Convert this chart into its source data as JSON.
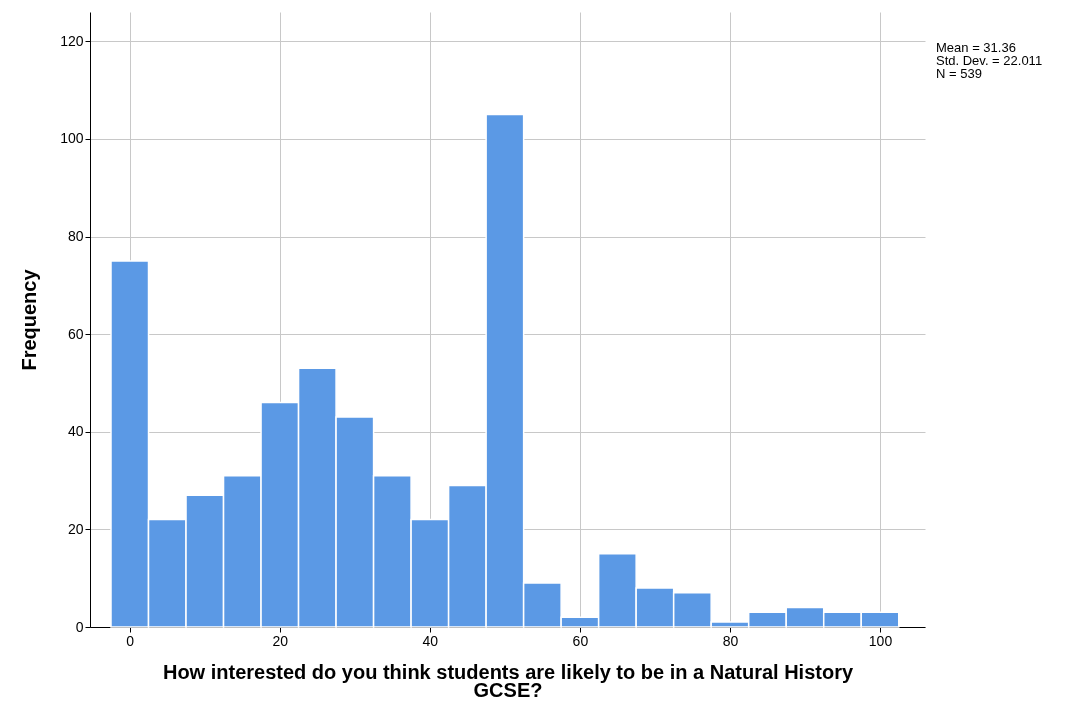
{
  "chart_data": {
    "type": "histogram",
    "xlabel": "How interested do you think students are likely to be in a Natural History GCSE?",
    "ylabel": "Frequency",
    "bins": [
      -2.5,
      2.5,
      7.5,
      12.5,
      17.5,
      22.5,
      27.5,
      32.5,
      37.5,
      42.5,
      47.5,
      52.5,
      57.5,
      62.5,
      67.5,
      72.5,
      77.5,
      82.5,
      87.5,
      92.5,
      97.5,
      102.5
    ],
    "values": [
      75,
      22,
      27,
      31,
      46,
      53,
      43,
      31,
      22,
      29,
      105,
      9,
      2,
      15,
      8,
      7,
      1,
      3,
      4,
      3,
      3
    ],
    "color": "#5b99e5",
    "xlim": [
      -5.3,
      106
    ],
    "xticks": [
      0,
      20,
      40,
      60,
      80,
      100
    ],
    "ylim": [
      0,
      126
    ],
    "yticks": [
      0,
      20,
      40,
      60,
      80,
      100,
      120
    ],
    "grid": true,
    "annotations": [
      "Mean = 31.36",
      "Std. Dev. = 22.011",
      "N = 539"
    ]
  }
}
